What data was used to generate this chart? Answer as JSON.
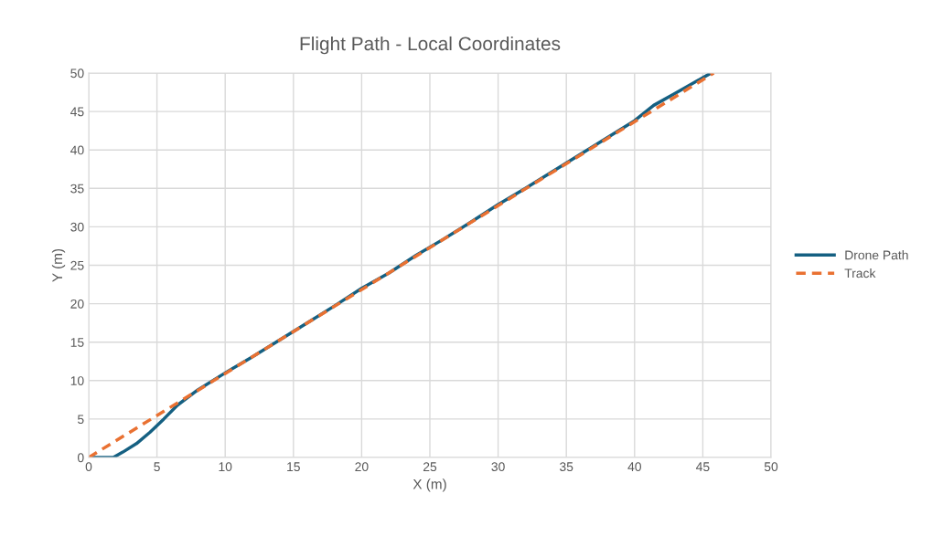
{
  "chart_data": {
    "type": "line",
    "title": "Flight Path - Local Coordinates",
    "xlabel": "X (m)",
    "ylabel": "Y (m)",
    "xlim": [
      0,
      50
    ],
    "xticks": [
      0,
      5,
      10,
      15,
      20,
      25,
      30,
      35,
      40,
      45,
      50
    ],
    "ylim": [
      0,
      50
    ],
    "yticks": [
      0,
      5,
      10,
      15,
      20,
      25,
      30,
      35,
      40,
      45,
      50
    ],
    "grid": true,
    "legend": "right",
    "marker": "none",
    "series": [
      {
        "name": "Drone Path",
        "color": "#156082",
        "line_style": "solid",
        "x": [
          0,
          1.0,
          1.8,
          2.5,
          3.5,
          4.5,
          5.5,
          6.5,
          8.0,
          10.0,
          12.0,
          14.0,
          16.0,
          18.0,
          20.0,
          22.0,
          24.0,
          26.0,
          28.0,
          30.0,
          32.0,
          34.0,
          36.0,
          38.0,
          40.0,
          41.4,
          43.0,
          44.5,
          45.6
        ],
        "values": [
          0,
          0,
          0,
          0.7,
          1.8,
          3.3,
          5.0,
          6.8,
          8.8,
          11.0,
          13.1,
          15.3,
          17.5,
          19.7,
          22.0,
          24.0,
          26.3,
          28.4,
          30.6,
          32.9,
          35.0,
          37.2,
          39.4,
          41.6,
          43.8,
          45.8,
          47.4,
          48.9,
          50
        ]
      },
      {
        "name": "Track",
        "color": "#E97132",
        "line_style": "dashed",
        "x": [
          0,
          45.8
        ],
        "values": [
          0,
          50
        ]
      }
    ]
  }
}
